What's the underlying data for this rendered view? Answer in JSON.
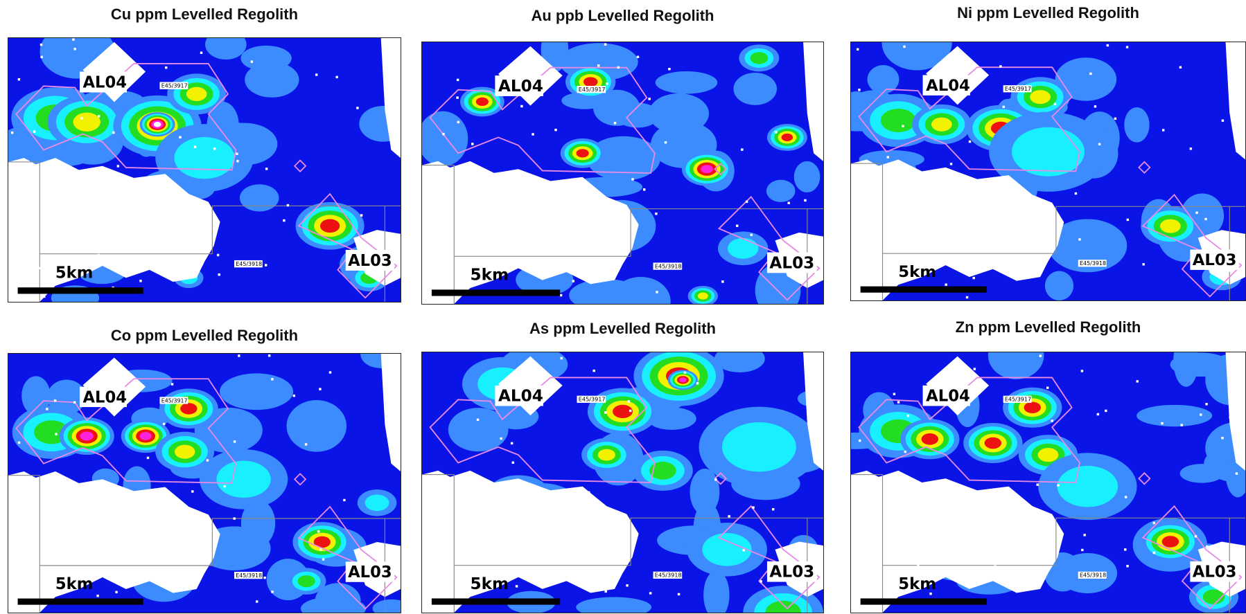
{
  "panels": [
    {
      "title": "Cu ppm Levelled Regolith",
      "labels": [
        "AL04",
        "AL03"
      ],
      "scale_bar": "5km",
      "tenements": [
        "E45/3917",
        "E45/3918"
      ]
    },
    {
      "title": "Au ppb Levelled Regolith",
      "labels": [
        "AL04",
        "AL03"
      ],
      "scale_bar": "5km",
      "tenements": [
        "E45/3917",
        "E45/3918"
      ]
    },
    {
      "title": "Ni ppm Levelled Regolith",
      "labels": [
        "AL04",
        "AL03"
      ],
      "scale_bar": "5km",
      "tenements": [
        "E45/3917",
        "E45/3918"
      ]
    },
    {
      "title": "Co ppm Levelled Regolith",
      "labels": [
        "AL04",
        "AL03"
      ],
      "scale_bar": "5km",
      "tenements": [
        "E45/3917",
        "E45/3918"
      ]
    },
    {
      "title": "As ppm Levelled Regolith",
      "labels": [
        "AL04",
        "AL03"
      ],
      "scale_bar": "5km",
      "tenements": [
        "E45/3917",
        "E45/3918"
      ]
    },
    {
      "title": "Zn ppm Levelled Regolith",
      "labels": [
        "AL04",
        "AL03"
      ],
      "scale_bar": "5km",
      "tenements": [
        "E45/3917",
        "E45/3918"
      ]
    }
  ]
}
